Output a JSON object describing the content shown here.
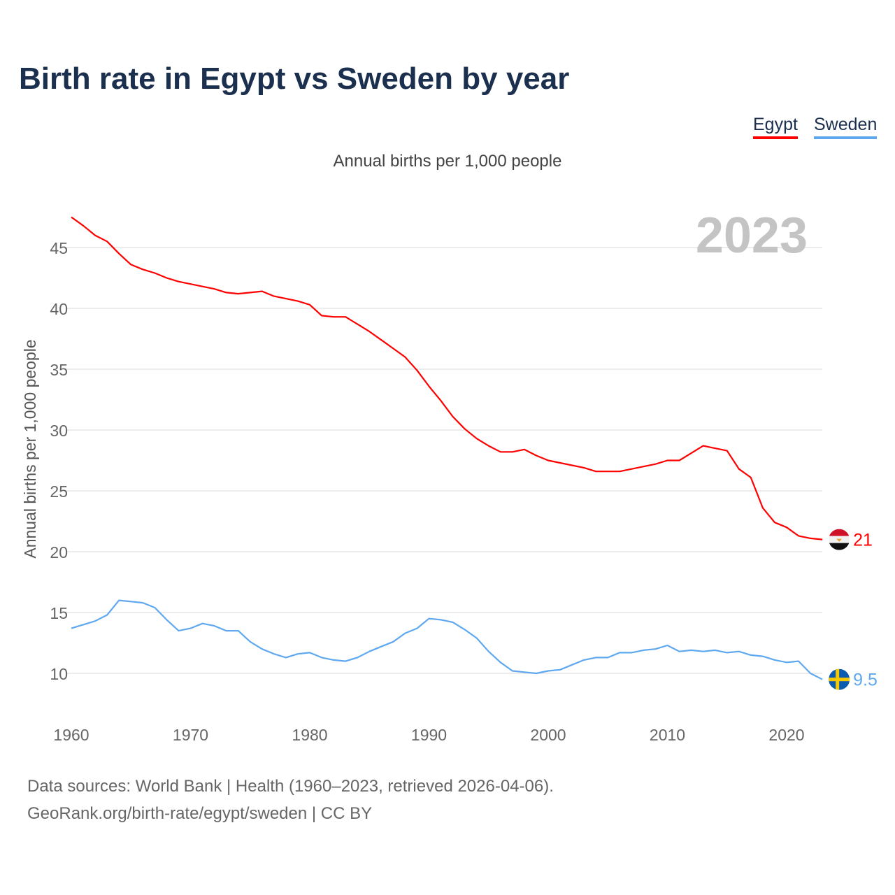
{
  "chart_data": {
    "type": "line",
    "title": "Birth rate in Egypt vs Sweden by year",
    "subtitle": "Annual births per 1,000 people",
    "ylabel": "Annual births per 1,000 people",
    "xlabel": "",
    "year_badge": "2023",
    "xlim": [
      1960,
      2023
    ],
    "ylim": [
      7,
      48
    ],
    "x_ticks": [
      1960,
      1970,
      1980,
      1990,
      2000,
      2010,
      2020
    ],
    "y_ticks": [
      10,
      15,
      20,
      25,
      30,
      35,
      40,
      45
    ],
    "grid": true,
    "legend_placement": "top-right",
    "x": [
      1960,
      1961,
      1962,
      1963,
      1964,
      1965,
      1966,
      1967,
      1968,
      1969,
      1970,
      1971,
      1972,
      1973,
      1974,
      1975,
      1976,
      1977,
      1978,
      1979,
      1980,
      1981,
      1982,
      1983,
      1984,
      1985,
      1986,
      1987,
      1988,
      1989,
      1990,
      1991,
      1992,
      1993,
      1994,
      1995,
      1996,
      1997,
      1998,
      1999,
      2000,
      2001,
      2002,
      2003,
      2004,
      2005,
      2006,
      2007,
      2008,
      2009,
      2010,
      2011,
      2012,
      2013,
      2014,
      2015,
      2016,
      2017,
      2018,
      2019,
      2020,
      2021,
      2022,
      2023
    ],
    "series": [
      {
        "name": "Egypt",
        "color": "#ff0000",
        "end_label": "21",
        "values": [
          47.5,
          46.8,
          46.0,
          45.5,
          44.5,
          43.6,
          43.2,
          42.9,
          42.5,
          42.2,
          42.0,
          41.8,
          41.6,
          41.3,
          41.2,
          41.3,
          41.4,
          41.0,
          40.8,
          40.6,
          40.3,
          39.4,
          39.3,
          39.3,
          38.7,
          38.1,
          37.4,
          36.7,
          36.0,
          34.9,
          33.6,
          32.4,
          31.1,
          30.1,
          29.3,
          28.7,
          28.2,
          28.2,
          28.4,
          27.9,
          27.5,
          27.3,
          27.1,
          26.9,
          26.6,
          26.6,
          26.6,
          26.8,
          27.0,
          27.2,
          27.5,
          27.5,
          28.1,
          28.7,
          28.5,
          28.3,
          26.8,
          26.1,
          23.6,
          22.4,
          22.0,
          21.3,
          21.1,
          21.0
        ]
      },
      {
        "name": "Sweden",
        "color": "#5fa8ef",
        "end_label": "9.5",
        "values": [
          13.7,
          14.0,
          14.3,
          14.8,
          16.0,
          15.9,
          15.8,
          15.4,
          14.4,
          13.5,
          13.7,
          14.1,
          13.9,
          13.5,
          13.5,
          12.6,
          12.0,
          11.6,
          11.3,
          11.6,
          11.7,
          11.3,
          11.1,
          11.0,
          11.3,
          11.8,
          12.2,
          12.6,
          13.3,
          13.7,
          14.5,
          14.4,
          14.2,
          13.6,
          12.9,
          11.8,
          10.9,
          10.2,
          10.1,
          10.0,
          10.2,
          10.3,
          10.7,
          11.1,
          11.3,
          11.3,
          11.7,
          11.7,
          11.9,
          12.0,
          12.3,
          11.8,
          11.9,
          11.8,
          11.9,
          11.7,
          11.8,
          11.5,
          11.4,
          11.1,
          10.9,
          11.0,
          10.0,
          9.5
        ]
      }
    ]
  },
  "footer": {
    "line1": "Data sources: World Bank | Health (1960–2023, retrieved 2026-04-06).",
    "line2": "GeoRank.org/birth-rate/egypt/sweden | CC BY"
  }
}
